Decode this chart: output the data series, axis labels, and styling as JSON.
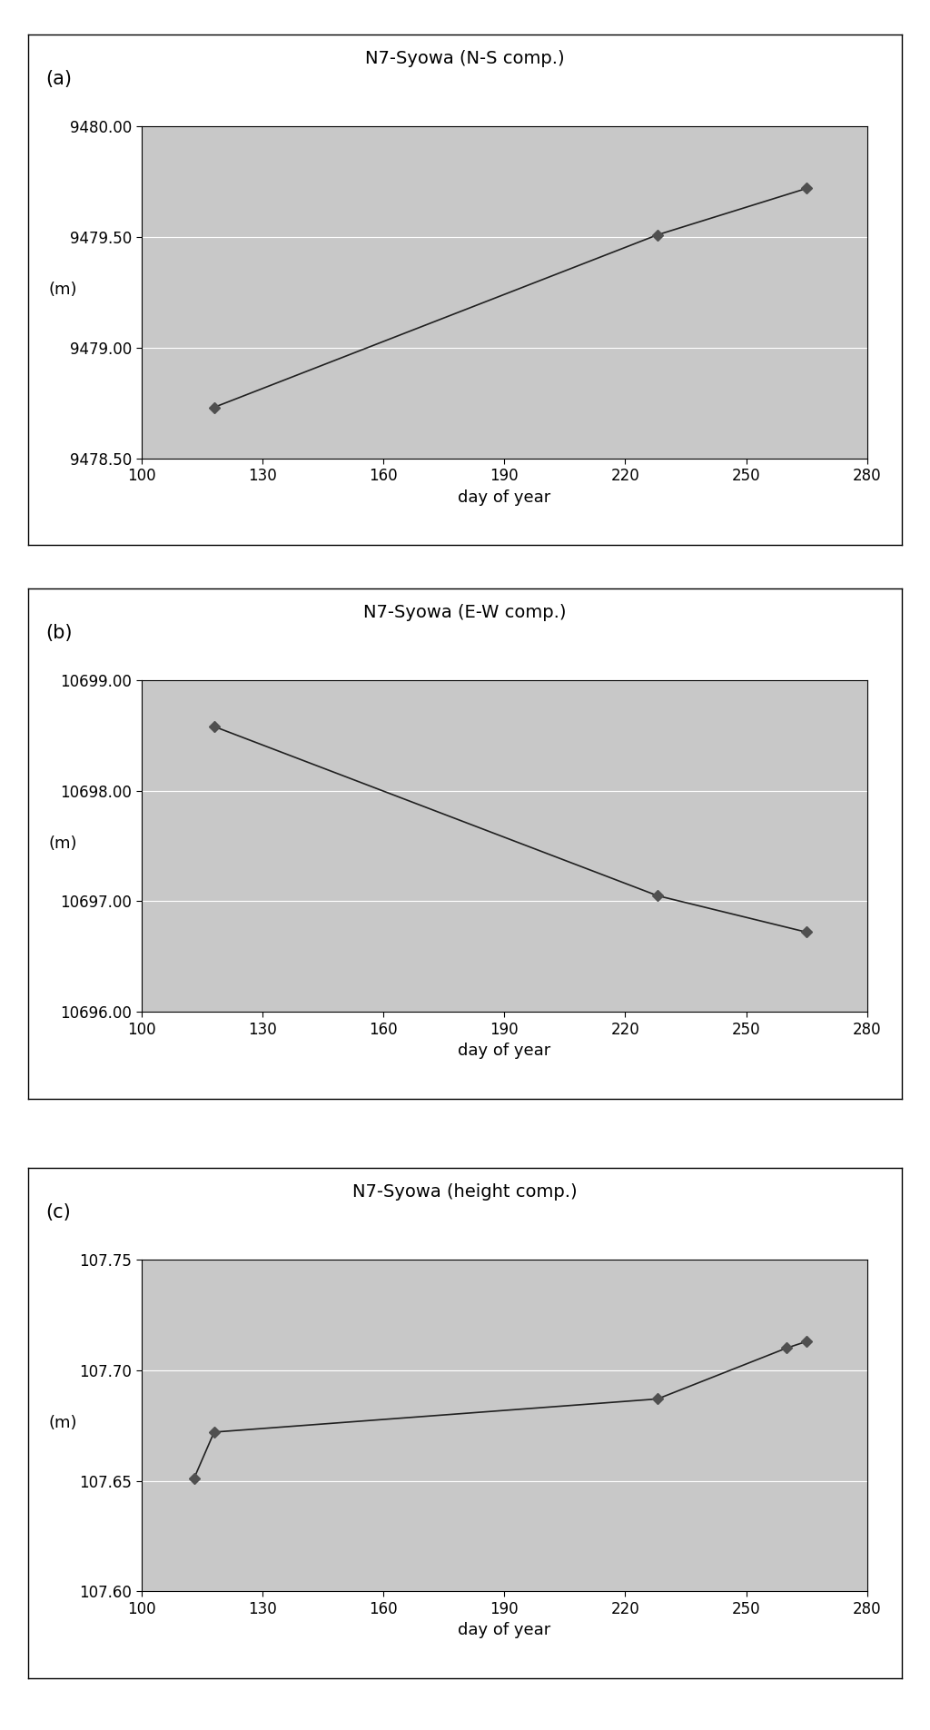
{
  "panel_a": {
    "title": "N7-Syowa (N-S comp.)",
    "label": "(a)",
    "x": [
      118,
      228,
      265
    ],
    "y": [
      9478.73,
      9479.51,
      9479.72
    ],
    "xlim": [
      100,
      280
    ],
    "ylim": [
      9478.5,
      9480.0
    ],
    "yticks": [
      9478.5,
      9479.0,
      9479.5,
      9480.0
    ],
    "ytick_labels": [
      "9478.50",
      "9479.00",
      "9479.50",
      "9480.00"
    ],
    "xticks": [
      100,
      130,
      160,
      190,
      220,
      250,
      280
    ],
    "xlabel": "day of year",
    "ylabel": "(m)"
  },
  "panel_b": {
    "title": "N7-Syowa (E-W comp.)",
    "label": "(b)",
    "x": [
      118,
      228,
      265
    ],
    "y": [
      10698.58,
      10697.05,
      10696.72
    ],
    "xlim": [
      100,
      280
    ],
    "ylim": [
      10696.0,
      10699.0
    ],
    "yticks": [
      10696.0,
      10697.0,
      10698.0,
      10699.0
    ],
    "ytick_labels": [
      "10696.00",
      "10697.00",
      "10698.00",
      "10699.00"
    ],
    "xticks": [
      100,
      130,
      160,
      190,
      220,
      250,
      280
    ],
    "xlabel": "day of year",
    "ylabel": "(m)"
  },
  "panel_c": {
    "title": "N7-Syowa (height comp.)",
    "label": "(c)",
    "x": [
      113,
      118,
      228,
      260,
      265
    ],
    "y": [
      107.651,
      107.672,
      107.687,
      107.71,
      107.713
    ],
    "xlim": [
      100,
      280
    ],
    "ylim": [
      107.6,
      107.75
    ],
    "yticks": [
      107.6,
      107.65,
      107.7,
      107.75
    ],
    "ytick_labels": [
      "107.60",
      "107.65",
      "107.70",
      "107.75"
    ],
    "xticks": [
      100,
      130,
      160,
      190,
      220,
      250,
      280
    ],
    "xlabel": "day of year",
    "ylabel": "(m)"
  },
  "plot_bg_color": "#c8c8c8",
  "fig_bg_color": "#ffffff",
  "outer_box_color": "#ffffff",
  "marker_color": "#505050",
  "line_color": "#202020",
  "marker_style": "D",
  "marker_size": 6,
  "line_width": 1.2,
  "tick_fontsize": 12,
  "label_fontsize": 13,
  "title_fontsize": 14,
  "panel_label_fontsize": 15,
  "grid_color": "#ffffff",
  "grid_linewidth": 0.8,
  "spine_linewidth": 0.8
}
